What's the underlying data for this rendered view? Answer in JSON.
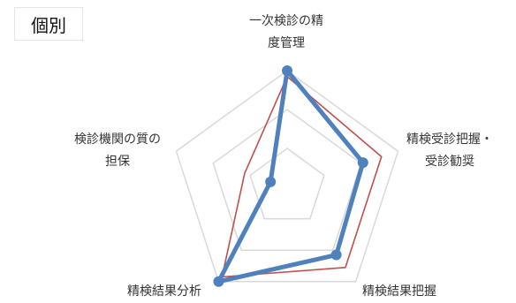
{
  "chart_data": {
    "type": "radar",
    "title": "個別",
    "axes": [
      [
        "一次検診の精",
        "度管理"
      ],
      [
        "精検受診把握・",
        "受診勧奨"
      ],
      [
        "精検結果把握"
      ],
      [
        "精検結果分析"
      ],
      [
        "検診機関の質の",
        "担保"
      ]
    ],
    "range": [
      0,
      3
    ],
    "rings": [
      1,
      2,
      3
    ],
    "series": [
      {
        "values": [
          2.85,
          2.55,
          2.55,
          2.85,
          1.15
        ],
        "color": "#c0504d",
        "style": "thin"
      },
      {
        "values": [
          3.0,
          2.05,
          2.15,
          3.0,
          0.45
        ],
        "color": "#4f81bd",
        "style": "thick-markers"
      }
    ]
  }
}
